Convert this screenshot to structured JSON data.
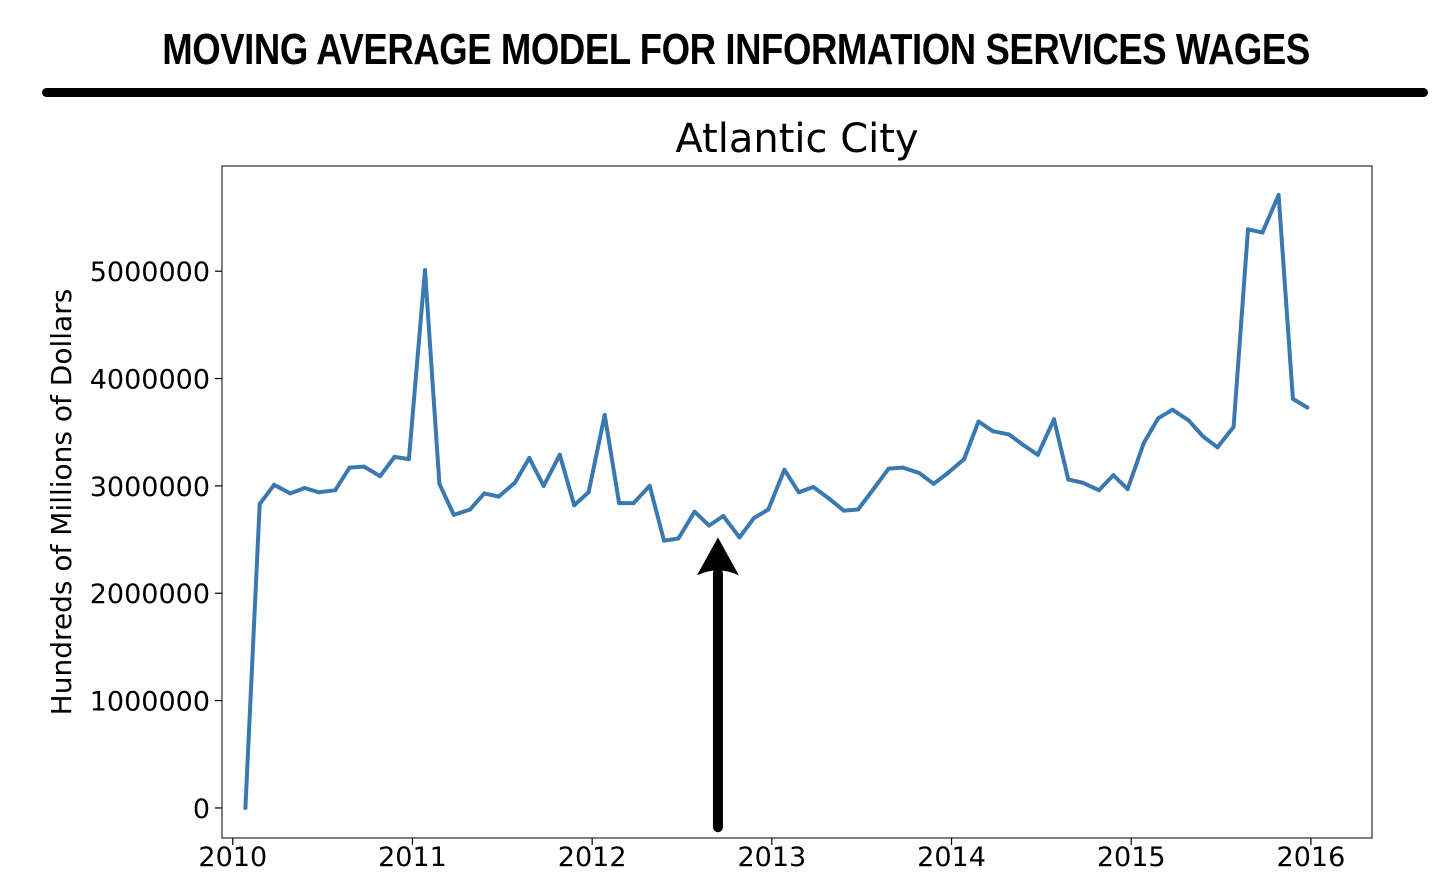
{
  "headline": "MOVING AVERAGE MODEL FOR INFORMATION SERVICES WAGES",
  "colors": {
    "line": "#3a78b0",
    "arrow": "#000000",
    "text": "#000000"
  },
  "chart_data": {
    "type": "line",
    "title": "Atlantic City",
    "xlabel": "",
    "ylabel": "Hundreds of Millions of Dollars",
    "xlim": [
      2009.94,
      2016.34
    ],
    "ylim": [
      -280000,
      5980000
    ],
    "xticks": [
      2010,
      2011,
      2012,
      2013,
      2014,
      2015,
      2016
    ],
    "xtick_labels": [
      "2010",
      "2011",
      "2012",
      "2013",
      "2014",
      "2015",
      "2016"
    ],
    "yticks": [
      0,
      1000000,
      2000000,
      3000000,
      4000000,
      5000000
    ],
    "ytick_labels": [
      "0",
      "1000000",
      "2000000",
      "3000000",
      "4000000",
      "5000000"
    ],
    "grid": false,
    "annotation": {
      "type": "arrow",
      "x": 2012.7,
      "y_tip": 2520000,
      "y_tail": -180000,
      "direction": "up"
    },
    "series": [
      {
        "name": "",
        "color": "#3a78b0",
        "points": [
          [
            2010.07,
            0
          ],
          [
            2010.15,
            2830000
          ],
          [
            2010.23,
            3010000
          ],
          [
            2010.32,
            2930000
          ],
          [
            2010.4,
            2980000
          ],
          [
            2010.48,
            2940000
          ],
          [
            2010.57,
            2960000
          ],
          [
            2010.65,
            3170000
          ],
          [
            2010.73,
            3180000
          ],
          [
            2010.82,
            3090000
          ],
          [
            2010.9,
            3270000
          ],
          [
            2010.98,
            3250000
          ],
          [
            2011.07,
            5010000
          ],
          [
            2011.15,
            3020000
          ],
          [
            2011.23,
            2730000
          ],
          [
            2011.32,
            2780000
          ],
          [
            2011.4,
            2930000
          ],
          [
            2011.48,
            2900000
          ],
          [
            2011.57,
            3030000
          ],
          [
            2011.65,
            3260000
          ],
          [
            2011.73,
            3000000
          ],
          [
            2011.82,
            3290000
          ],
          [
            2011.9,
            2820000
          ],
          [
            2011.98,
            2940000
          ],
          [
            2012.07,
            3660000
          ],
          [
            2012.15,
            2840000
          ],
          [
            2012.23,
            2840000
          ],
          [
            2012.32,
            3000000
          ],
          [
            2012.4,
            2490000
          ],
          [
            2012.48,
            2510000
          ],
          [
            2012.57,
            2760000
          ],
          [
            2012.65,
            2630000
          ],
          [
            2012.73,
            2720000
          ],
          [
            2012.82,
            2520000
          ],
          [
            2012.9,
            2700000
          ],
          [
            2012.98,
            2780000
          ],
          [
            2013.07,
            3150000
          ],
          [
            2013.15,
            2940000
          ],
          [
            2013.23,
            2990000
          ],
          [
            2013.32,
            2880000
          ],
          [
            2013.4,
            2770000
          ],
          [
            2013.48,
            2780000
          ],
          [
            2013.57,
            2980000
          ],
          [
            2013.65,
            3160000
          ],
          [
            2013.73,
            3170000
          ],
          [
            2013.82,
            3120000
          ],
          [
            2013.9,
            3020000
          ],
          [
            2013.98,
            3120000
          ],
          [
            2014.07,
            3250000
          ],
          [
            2014.15,
            3600000
          ],
          [
            2014.23,
            3510000
          ],
          [
            2014.32,
            3480000
          ],
          [
            2014.4,
            3380000
          ],
          [
            2014.48,
            3290000
          ],
          [
            2014.57,
            3620000
          ],
          [
            2014.65,
            3060000
          ],
          [
            2014.73,
            3030000
          ],
          [
            2014.82,
            2960000
          ],
          [
            2014.9,
            3100000
          ],
          [
            2014.98,
            2970000
          ],
          [
            2015.07,
            3400000
          ],
          [
            2015.15,
            3630000
          ],
          [
            2015.23,
            3710000
          ],
          [
            2015.32,
            3610000
          ],
          [
            2015.4,
            3460000
          ],
          [
            2015.48,
            3360000
          ],
          [
            2015.57,
            3550000
          ],
          [
            2015.65,
            5390000
          ],
          [
            2015.73,
            5360000
          ],
          [
            2015.82,
            5710000
          ],
          [
            2015.9,
            3810000
          ],
          [
            2015.98,
            3730000
          ]
        ]
      }
    ]
  }
}
